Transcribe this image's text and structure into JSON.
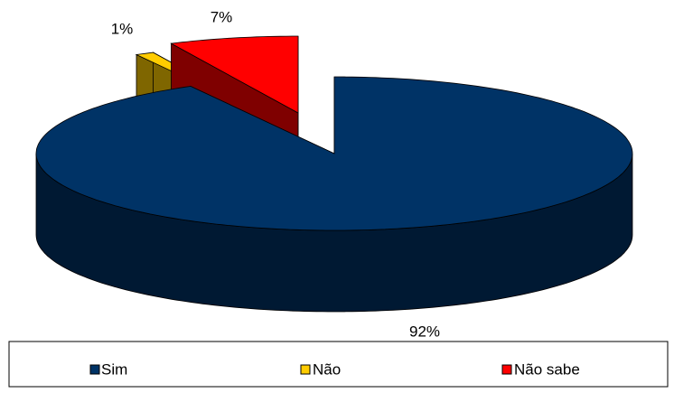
{
  "chart_data": {
    "type": "pie",
    "categories": [
      "Sim",
      "Não",
      "Não sabe"
    ],
    "values": [
      92,
      1,
      7
    ],
    "value_labels": [
      "92%",
      "1%",
      "7%"
    ],
    "colors": [
      "#003366",
      "#ffcc00",
      "#ff0000"
    ],
    "legend": "bottom"
  }
}
